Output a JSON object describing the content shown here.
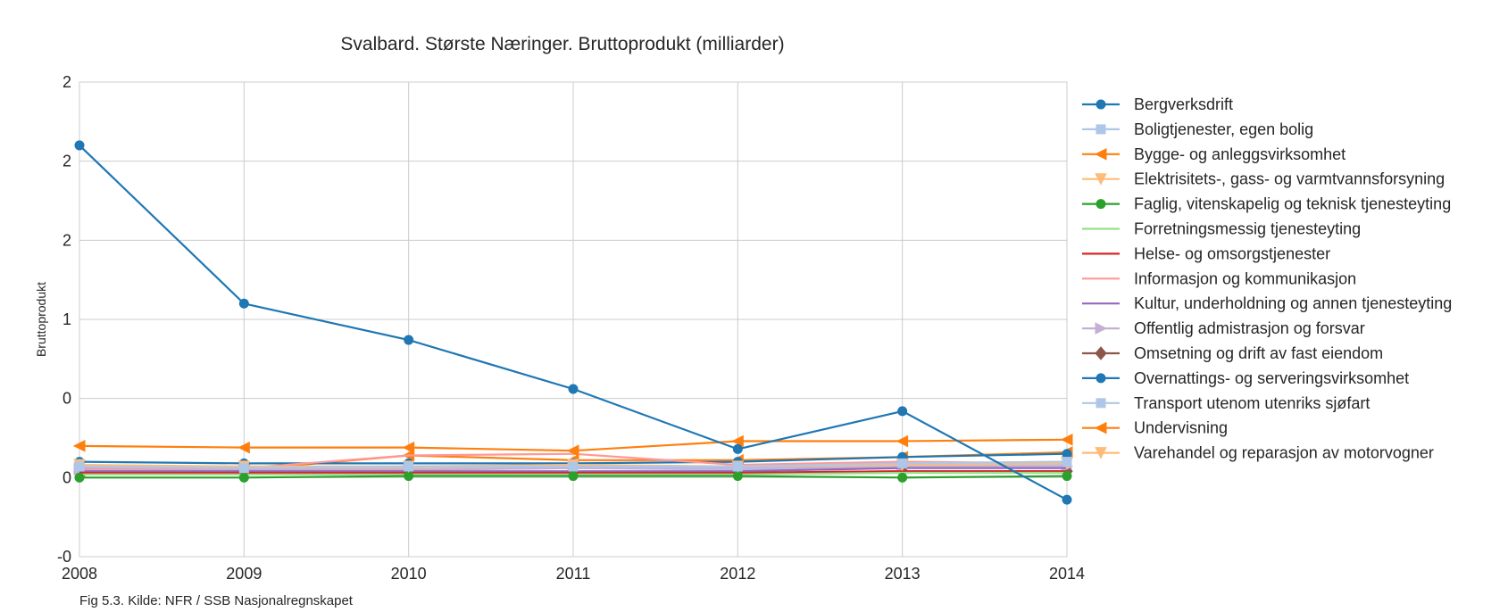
{
  "chart_data": {
    "type": "line",
    "title": "Svalbard. Største Næringer. Bruttoprodukt (milliarder)",
    "xlabel": "",
    "ylabel": "Bruttoprodukt",
    "caption": "Fig 5.3. Kilde: NFR / SSB Nasjonalregnskapet",
    "x": [
      "2008",
      "2009",
      "2010",
      "2011",
      "2012",
      "2013",
      "2014"
    ],
    "xlim": [
      2008,
      2014
    ],
    "ylim": [
      -0.5,
      2.5
    ],
    "y_tick_values": [
      -0.5,
      0,
      0.5,
      1,
      1.5,
      2,
      2.5
    ],
    "y_tick_labels": [
      "-0",
      "0",
      "0",
      "1",
      "2",
      "2",
      "2"
    ],
    "grid": true,
    "legend_position": "right",
    "series": [
      {
        "name": "Bergverksdrift",
        "color": "#1f77b4",
        "marker": "circle",
        "values": [
          2.1,
          1.1,
          0.87,
          0.56,
          0.18,
          0.42,
          -0.14
        ]
      },
      {
        "name": "Boligtjenester, egen bolig",
        "color": "#aec7e8",
        "marker": "square",
        "values": [
          0.07,
          0.06,
          0.07,
          0.07,
          0.07,
          0.09,
          0.1
        ]
      },
      {
        "name": "Bygge- og anleggsvirksomhet",
        "color": "#ff7f0e",
        "marker": "triangle-left",
        "values": [
          0.2,
          0.19,
          0.19,
          0.17,
          0.23,
          0.23,
          0.24
        ]
      },
      {
        "name": "Elektrisitets-, gass- og varmtvannsforsyning",
        "color": "#ffbb78",
        "marker": "triangle-down",
        "values": [
          0.08,
          0.07,
          0.07,
          0.08,
          0.07,
          0.08,
          0.09
        ]
      },
      {
        "name": "Faglig, vitenskapelig og teknisk tjenesteyting",
        "color": "#2ca02c",
        "marker": "circle",
        "values": [
          0.0,
          0.0,
          0.01,
          0.01,
          0.01,
          0.0,
          0.01
        ]
      },
      {
        "name": "Forretningsmessig tjenesteyting",
        "color": "#98df8a",
        "marker": "none",
        "values": [
          0.02,
          0.02,
          0.02,
          0.02,
          0.02,
          0.03,
          0.03
        ]
      },
      {
        "name": "Helse- og omsorgstjenester",
        "color": "#d62728",
        "marker": "none",
        "values": [
          0.03,
          0.03,
          0.03,
          0.03,
          0.03,
          0.04,
          0.04
        ]
      },
      {
        "name": "Informasjon og kommunikasjon",
        "color": "#ff9896",
        "marker": "none",
        "values": [
          0.06,
          0.06,
          0.14,
          0.15,
          0.08,
          0.1,
          0.09
        ]
      },
      {
        "name": "Kultur, underholdning og annen tjenesteyting",
        "color": "#9467bd",
        "marker": "none",
        "values": [
          0.04,
          0.04,
          0.04,
          0.04,
          0.04,
          0.06,
          0.06
        ]
      },
      {
        "name": "Offentlig admistrasjon og forsvar",
        "color": "#c5b0d5",
        "marker": "triangle-right",
        "values": [
          0.05,
          0.05,
          0.05,
          0.06,
          0.06,
          0.07,
          0.07
        ]
      },
      {
        "name": "Omsetning og drift av fast eiendom",
        "color": "#8c564b",
        "marker": "diamond",
        "values": [
          0.03,
          0.03,
          0.03,
          0.03,
          0.03,
          0.04,
          0.04
        ]
      },
      {
        "name": "Overnattings- og serveringsvirksomhet",
        "color": "#1f77b4",
        "marker": "circle",
        "values": [
          0.1,
          0.09,
          0.09,
          0.09,
          0.1,
          0.13,
          0.15
        ]
      },
      {
        "name": "Transport utenom utenriks sjøfart",
        "color": "#aec7e8",
        "marker": "square",
        "values": [
          0.05,
          0.05,
          0.05,
          0.06,
          0.05,
          0.07,
          0.08
        ]
      },
      {
        "name": "Undervisning",
        "color": "#ff7f0e",
        "marker": "triangle-left",
        "values": [
          0.04,
          0.05,
          0.14,
          0.11,
          0.11,
          0.13,
          0.16
        ]
      },
      {
        "name": "Varehandel og reparasjon av motorvogner",
        "color": "#ffbb78",
        "marker": "triangle-down",
        "values": [
          0.06,
          0.06,
          0.06,
          0.07,
          0.07,
          0.09,
          0.1
        ]
      }
    ]
  }
}
